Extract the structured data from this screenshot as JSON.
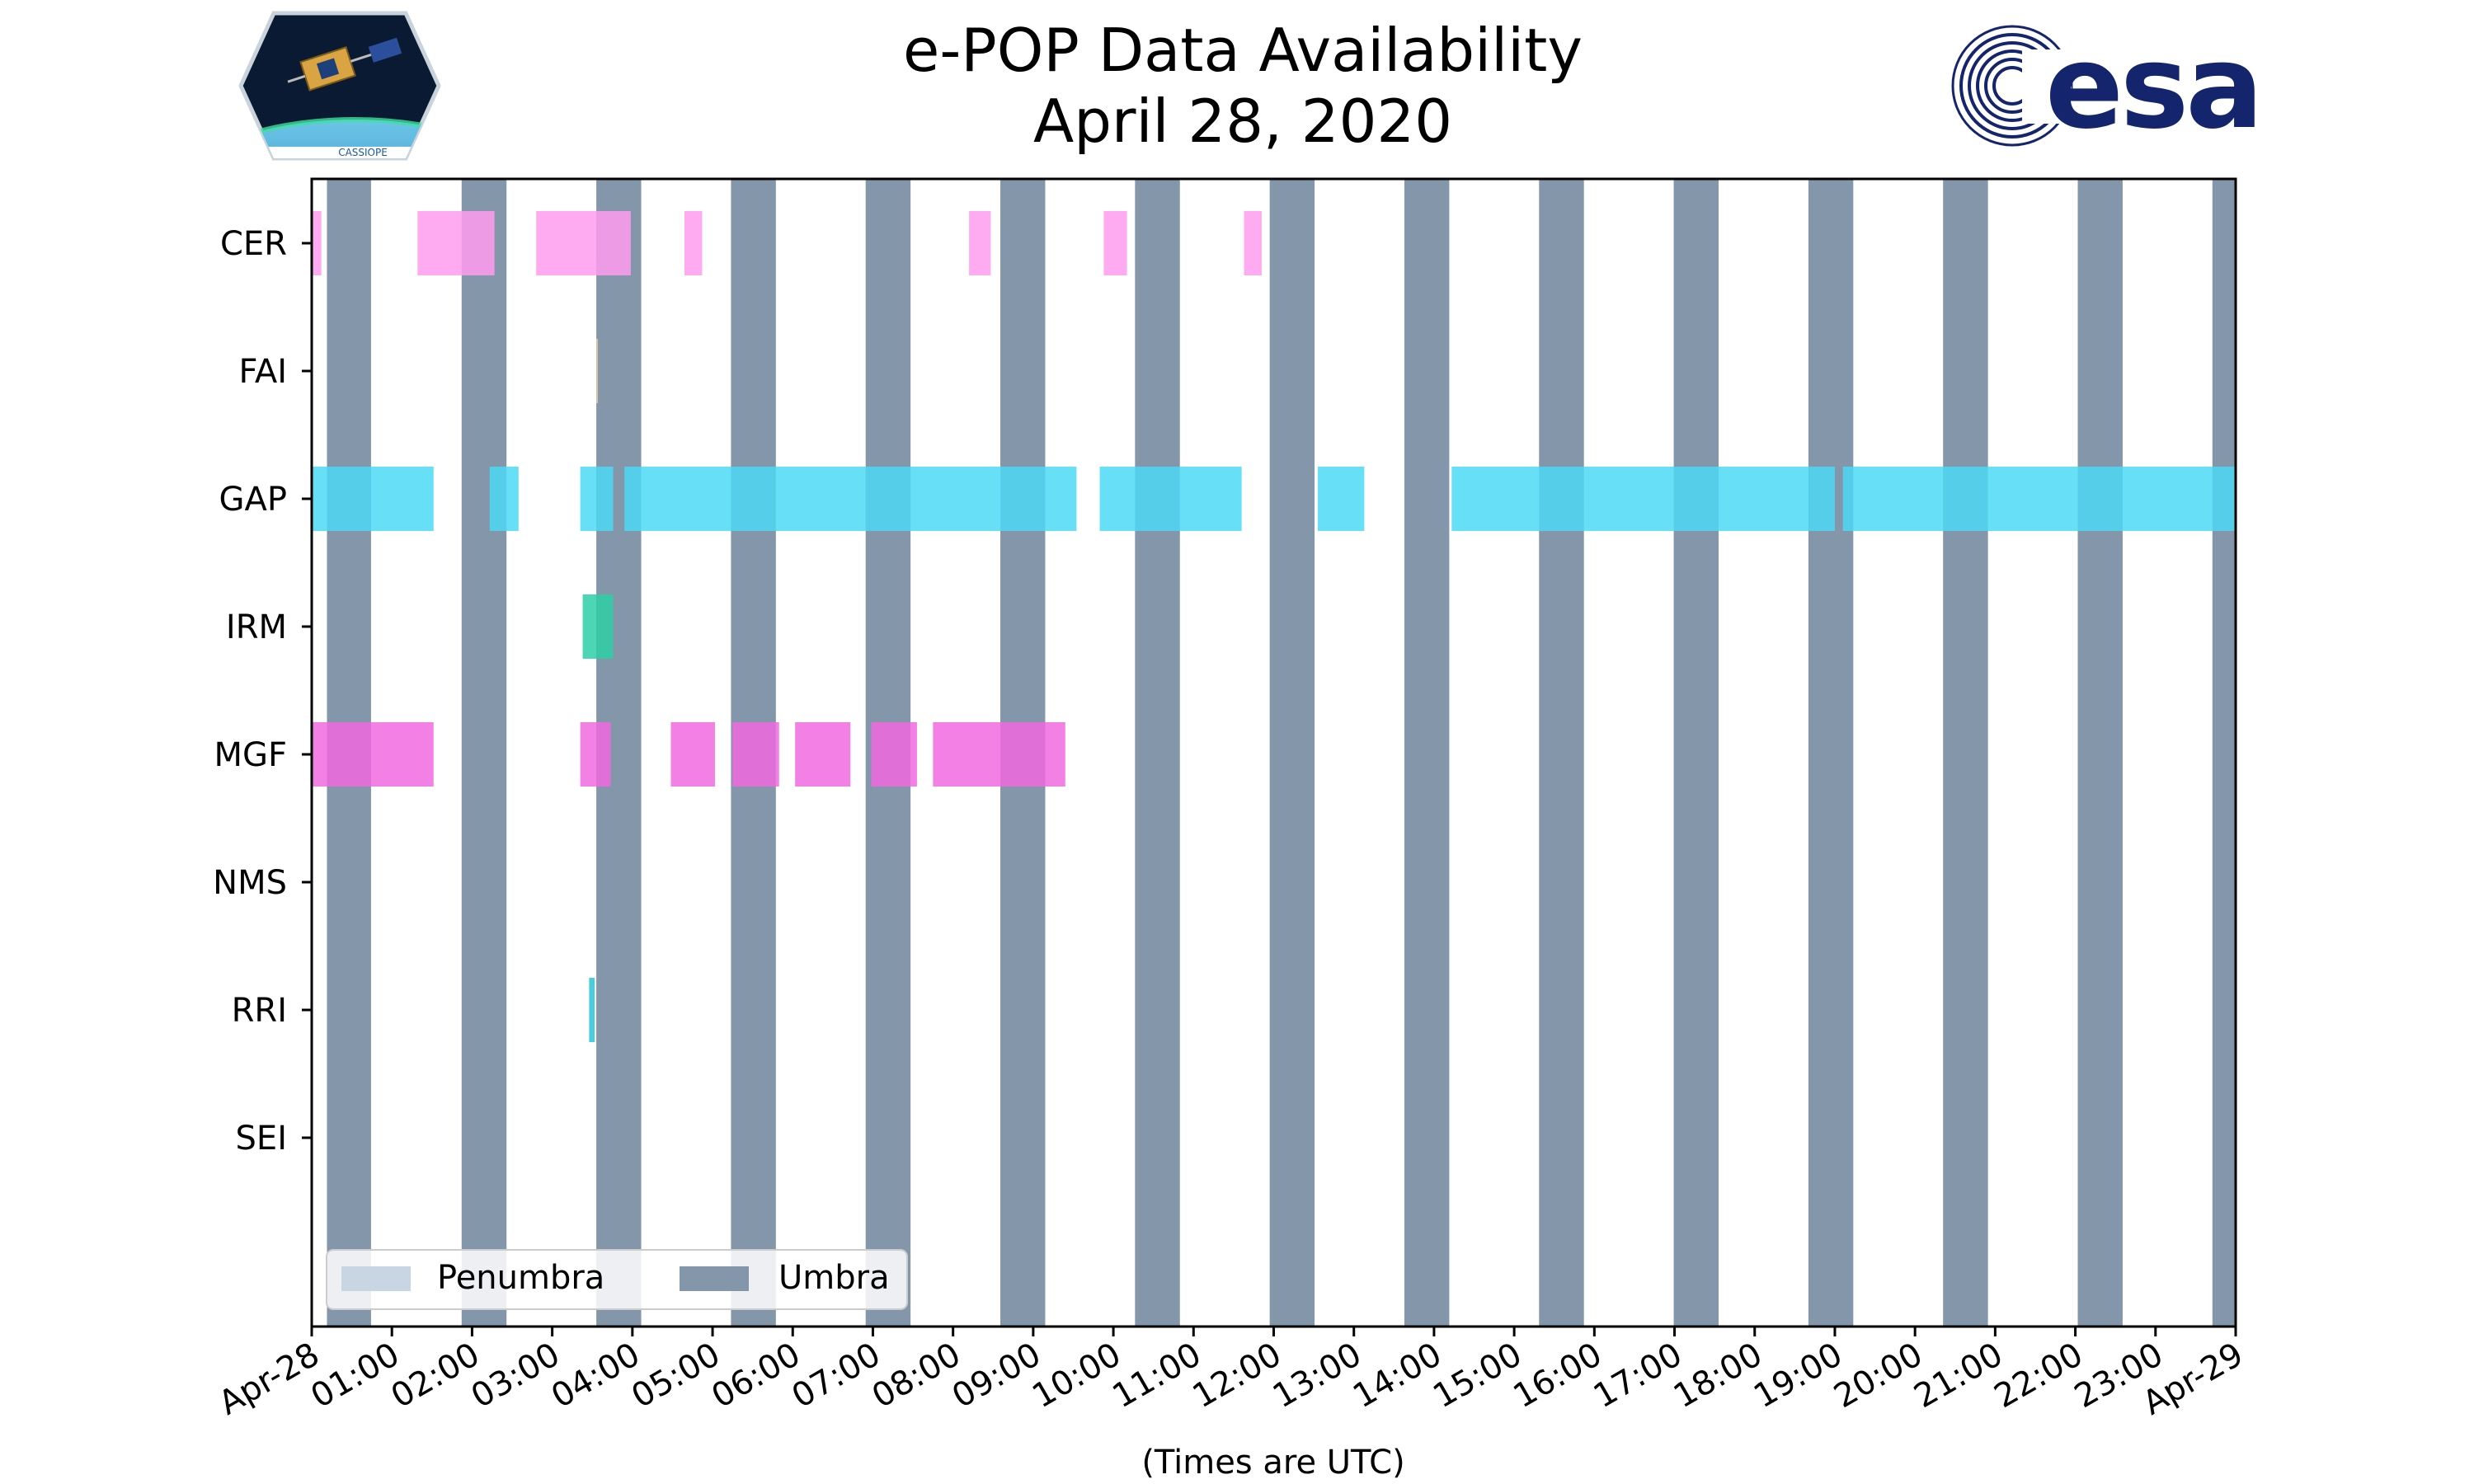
{
  "chart_data": {
    "type": "timeline",
    "title": "e-POP Data Availability",
    "subtitle": "April 28, 2020",
    "xlabel": "(Times are UTC)",
    "x_unit": "hours since 2020-04-28 00:00 UTC",
    "xlim": [
      0,
      24
    ],
    "x_ticks": [
      {
        "hour": 0,
        "label": "Apr-28"
      },
      {
        "hour": 1,
        "label": "01:00"
      },
      {
        "hour": 2,
        "label": "02:00"
      },
      {
        "hour": 3,
        "label": "03:00"
      },
      {
        "hour": 4,
        "label": "04:00"
      },
      {
        "hour": 5,
        "label": "05:00"
      },
      {
        "hour": 6,
        "label": "06:00"
      },
      {
        "hour": 7,
        "label": "07:00"
      },
      {
        "hour": 8,
        "label": "08:00"
      },
      {
        "hour": 9,
        "label": "09:00"
      },
      {
        "hour": 10,
        "label": "10:00"
      },
      {
        "hour": 11,
        "label": "11:00"
      },
      {
        "hour": 12,
        "label": "12:00"
      },
      {
        "hour": 13,
        "label": "13:00"
      },
      {
        "hour": 14,
        "label": "14:00"
      },
      {
        "hour": 15,
        "label": "15:00"
      },
      {
        "hour": 16,
        "label": "16:00"
      },
      {
        "hour": 17,
        "label": "17:00"
      },
      {
        "hour": 18,
        "label": "18:00"
      },
      {
        "hour": 19,
        "label": "19:00"
      },
      {
        "hour": 20,
        "label": "20:00"
      },
      {
        "hour": 21,
        "label": "21:00"
      },
      {
        "hour": 22,
        "label": "22:00"
      },
      {
        "hour": 23,
        "label": "23:00"
      },
      {
        "hour": 24,
        "label": "Apr-29"
      }
    ],
    "instruments": [
      "CER",
      "FAI",
      "GAP",
      "IRM",
      "MGF",
      "NMS",
      "RRI",
      "SEI"
    ],
    "series": [
      {
        "name": "CER",
        "color": "#ff9cf0",
        "intervals": [
          [
            0.0,
            0.12
          ],
          [
            1.32,
            2.28
          ],
          [
            2.8,
            3.98
          ],
          [
            4.65,
            4.87
          ],
          [
            8.2,
            8.47
          ],
          [
            9.88,
            10.17
          ],
          [
            11.63,
            11.85
          ]
        ]
      },
      {
        "name": "FAI",
        "color": "#e8c9a0",
        "intervals": [
          [
            3.55,
            3.57
          ]
        ]
      },
      {
        "name": "GAP",
        "color": "#4cd9f5",
        "intervals": [
          [
            0.0,
            1.52
          ],
          [
            2.22,
            2.58
          ],
          [
            3.35,
            3.76
          ],
          [
            3.9,
            9.54
          ],
          [
            9.83,
            11.6
          ],
          [
            12.55,
            13.13
          ],
          [
            14.22,
            19.0
          ],
          [
            19.1,
            24.0
          ]
        ]
      },
      {
        "name": "IRM",
        "color": "#2ecfa6",
        "intervals": [
          [
            3.38,
            3.76
          ]
        ]
      },
      {
        "name": "MGF",
        "color": "#f06ae0",
        "intervals": [
          [
            0.0,
            1.52
          ],
          [
            3.35,
            3.73
          ],
          [
            4.48,
            5.03
          ],
          [
            5.25,
            5.83
          ],
          [
            6.03,
            6.72
          ],
          [
            6.98,
            7.55
          ],
          [
            7.75,
            9.4
          ]
        ]
      },
      {
        "name": "NMS",
        "color": "#d7d7d7",
        "intervals": []
      },
      {
        "name": "RRI",
        "color": "#2fc3d9",
        "intervals": [
          [
            3.46,
            3.53
          ]
        ]
      },
      {
        "name": "SEI",
        "color": "#bbbbbb",
        "intervals": []
      }
    ],
    "umbra": [
      [
        0.19,
        0.74
      ],
      [
        1.87,
        2.43
      ],
      [
        3.55,
        4.11
      ],
      [
        5.23,
        5.79
      ],
      [
        6.91,
        7.47
      ],
      [
        8.59,
        9.15
      ],
      [
        10.27,
        10.83
      ],
      [
        11.95,
        12.51
      ],
      [
        13.63,
        14.19
      ],
      [
        15.31,
        15.87
      ],
      [
        16.99,
        17.55
      ],
      [
        18.67,
        19.23
      ],
      [
        20.35,
        20.91
      ],
      [
        22.03,
        22.59
      ],
      [
        23.71,
        24.0
      ]
    ],
    "legend": {
      "position": "lower-left",
      "entries": [
        {
          "label": "Penumbra",
          "color": "#c8d5e3"
        },
        {
          "label": "Umbra",
          "color": "#8496a9"
        }
      ]
    },
    "colors": {
      "umbra": "#8496a9",
      "penumbra": "#c8d5e3"
    }
  },
  "logos": {
    "left": {
      "caption": "CASSIOPE"
    },
    "right": {
      "text": "esa"
    }
  }
}
